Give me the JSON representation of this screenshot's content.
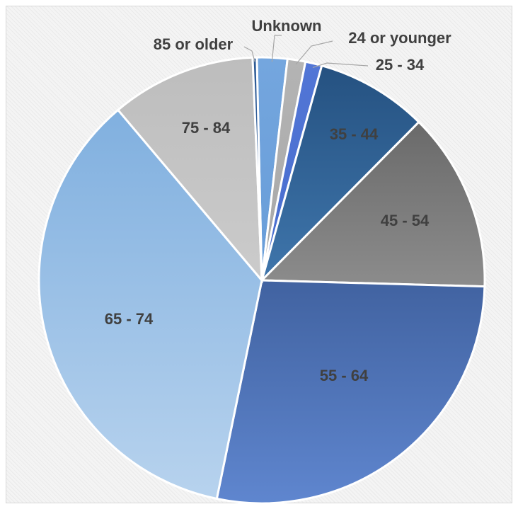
{
  "chart_data": {
    "type": "pie",
    "title": "",
    "start_angle_deg": -1.3,
    "slices": [
      {
        "label": "Unknown",
        "value": 2.2,
        "color_start": "#74a6de",
        "color_end": "#5b93d3"
      },
      {
        "label": "24 or younger",
        "value": 1.3,
        "color_start": "#b4b4b4",
        "color_end": "#9a9a9a"
      },
      {
        "label": "25 - 34",
        "value": 1.2,
        "color_start": "#5276d6",
        "color_end": "#3f64c6"
      },
      {
        "label": "35 - 44",
        "value": 8.1,
        "color_start": "#24507f",
        "color_end": "#5a9bd8"
      },
      {
        "label": "45 - 54",
        "value": 13.0,
        "color_start": "#5d5d5d",
        "color_end": "#b8b8b8"
      },
      {
        "label": "55 - 64",
        "value": 27.8,
        "color_start": "#233f72",
        "color_end": "#5f86cf"
      },
      {
        "label": "65 - 74",
        "value": 35.6,
        "color_start": "#79abdd",
        "color_end": "#b8d3ee"
      },
      {
        "label": "75 - 84",
        "value": 10.5,
        "color_start": "#bdbdbd",
        "color_end": "#d9d9d9"
      },
      {
        "label": "85 or older",
        "value": 0.3,
        "color_start": "#2e5b96",
        "color_end": "#3a6aa6"
      }
    ]
  }
}
